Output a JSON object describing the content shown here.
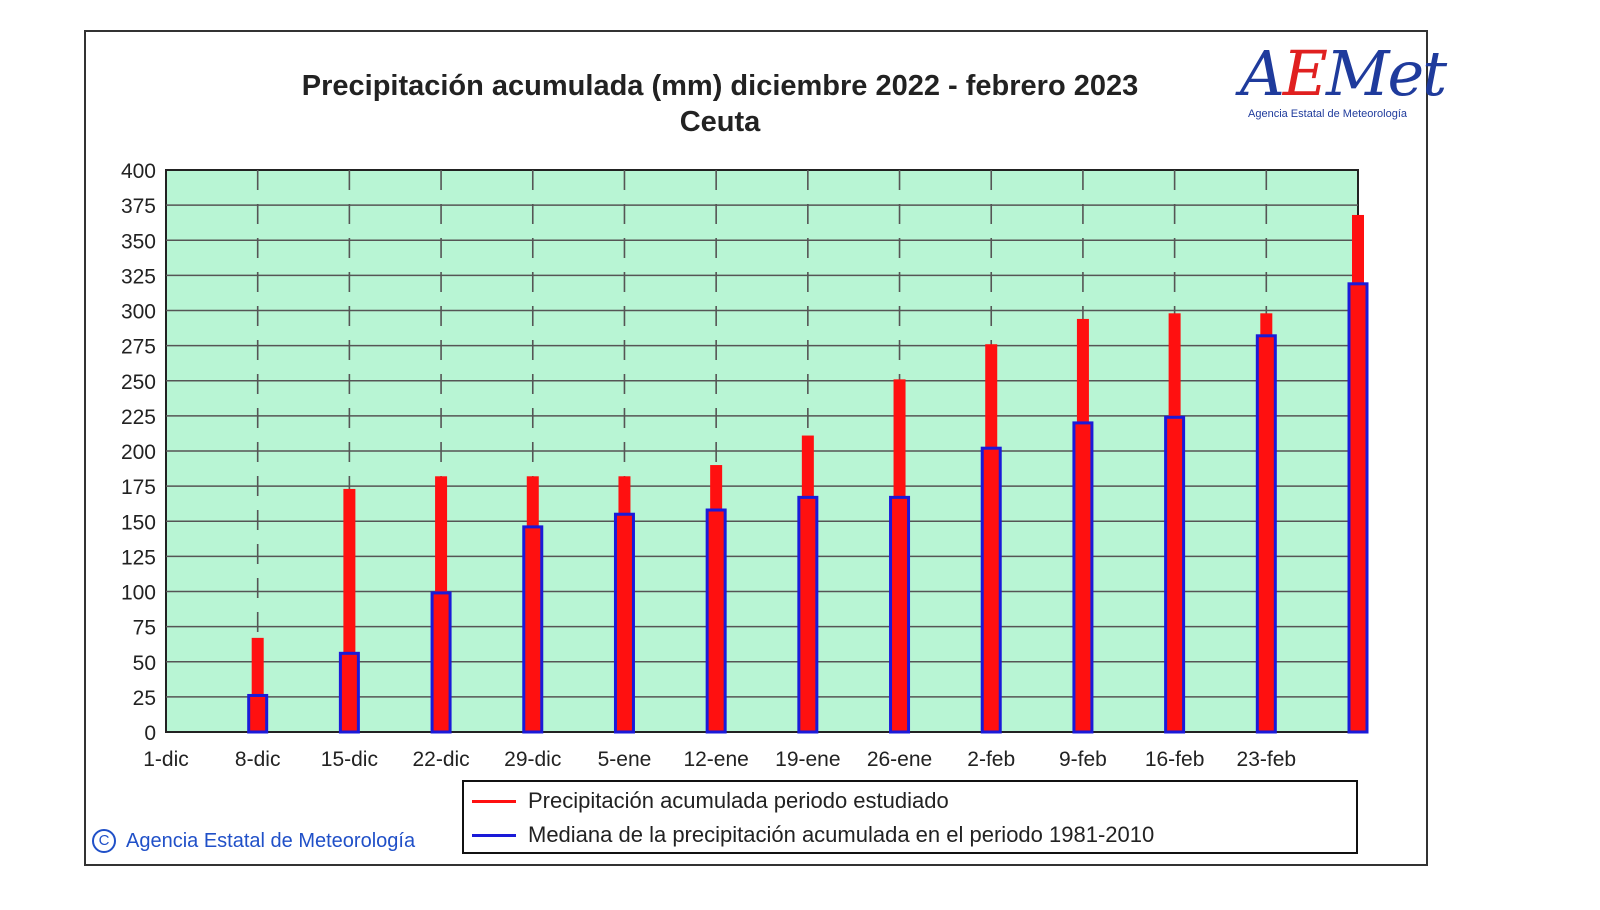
{
  "title": {
    "line1": "Precipitación acumulada (mm) diciembre 2022 - febrero 2023",
    "line2": "Ceuta"
  },
  "logo": {
    "word_a": "A",
    "word_e": "E",
    "word_met": "Met",
    "subtitle": "Agencia Estatal de Meteorología"
  },
  "legend": {
    "studied": "Precipitación acumulada periodo estudiado",
    "median": "Mediana de la precipitación acumulada en el periodo 1981-2010"
  },
  "copyright": {
    "symbol": "C",
    "text": "Agencia Estatal de Meteorología"
  },
  "colors": {
    "plot_bg": "#b8f5d4",
    "studied": "#ff1010",
    "median": "#1a1ad8",
    "grid": "#555555"
  },
  "chart_data": {
    "type": "bar",
    "title": "Precipitación acumulada (mm) diciembre 2022 - febrero 2023",
    "subtitle": "Ceuta",
    "xlabel": "",
    "ylabel": "",
    "ylim": [
      0,
      400
    ],
    "yticks": [
      0,
      25,
      50,
      75,
      100,
      125,
      150,
      175,
      200,
      225,
      250,
      275,
      300,
      325,
      350,
      375,
      400
    ],
    "categories": [
      "1-dic",
      "8-dic",
      "15-dic",
      "22-dic",
      "29-dic",
      "5-ene",
      "12-ene",
      "19-ene",
      "26-ene",
      "2-feb",
      "9-feb",
      "16-feb",
      "23-feb",
      ""
    ],
    "series": [
      {
        "name": "Precipitación acumulada periodo estudiado",
        "values": [
          0,
          67,
          173,
          182,
          182,
          182,
          190,
          211,
          251,
          276,
          294,
          298,
          298,
          368
        ]
      },
      {
        "name": "Mediana de la precipitación acumulada en el periodo 1981-2010",
        "values": [
          0,
          26,
          56,
          99,
          146,
          155,
          158,
          167,
          167,
          202,
          220,
          224,
          282,
          319
        ]
      }
    ],
    "grid": true,
    "legend_position": "bottom"
  }
}
